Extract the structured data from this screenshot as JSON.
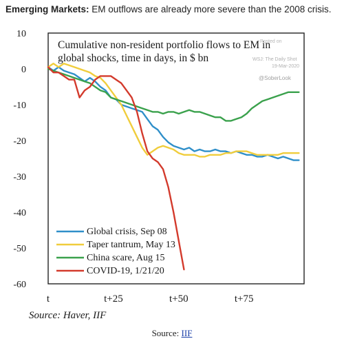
{
  "headline": {
    "bold": "Emerging Markets:",
    "rest": " EM outflows are already more severe than the 2008 crisis."
  },
  "footer": {
    "prefix": "Source: ",
    "link": "IIF"
  },
  "watermarks": {
    "wsj_posted": "Posted on",
    "wsj": "WSJ: The Daily Shot",
    "date": "19-Mar-2020",
    "handle": "@SoberLook"
  },
  "colors": {
    "global_crisis": "#2f8fc9",
    "taper": "#f0cd3c",
    "china": "#3aa14c",
    "covid": "#d33a2c",
    "text": "#1a1a1a"
  },
  "chart_data": {
    "type": "line",
    "title": "Cumulative non-resident portfolio flows to EM in global shocks, time in days, in $ bn",
    "title_lines": [
      "Cumulative non-resident portfolio flows to EM in",
      "global shocks, time in days, in $ bn"
    ],
    "source": "Source: Haver, IIF",
    "xlim": [
      0,
      98
    ],
    "ylim": [
      -60,
      10
    ],
    "y_ticks": [
      10,
      0,
      -10,
      -20,
      -30,
      -40,
      -50,
      -60
    ],
    "x_ticks": [
      {
        "value": 0,
        "label": "t"
      },
      {
        "value": 25,
        "label": "t+25"
      },
      {
        "value": 50,
        "label": "t+50"
      },
      {
        "value": 75,
        "label": "t+75"
      }
    ],
    "legend_position": "bottom-left",
    "series": [
      {
        "name": "Global crisis,  Sep 08",
        "color": "#2f8fc9",
        "x": [
          0,
          2,
          4,
          6,
          8,
          10,
          12,
          14,
          16,
          18,
          20,
          22,
          24,
          26,
          28,
          30,
          32,
          34,
          36,
          38,
          40,
          42,
          44,
          46,
          48,
          50,
          52,
          54,
          56,
          58,
          60,
          62,
          64,
          66,
          68,
          70,
          72,
          74,
          76,
          78,
          80,
          82,
          84,
          86,
          88,
          90,
          92,
          94,
          96
        ],
        "y": [
          0.5,
          -0.5,
          0.5,
          -0.5,
          -1,
          -1.5,
          -2.5,
          -3.5,
          -2.5,
          -3.5,
          -5,
          -6,
          -8,
          -8.5,
          -10,
          -10.5,
          -11,
          -11.5,
          -12,
          -14,
          -16,
          -17,
          -19,
          -20.5,
          -21.5,
          -22,
          -22.5,
          -22,
          -23,
          -22.5,
          -23,
          -23,
          -22.5,
          -23,
          -23,
          -23.5,
          -23,
          -23.5,
          -24,
          -24,
          -24.5,
          -24.5,
          -24,
          -24.5,
          -25,
          -24.5,
          -25,
          -25.5,
          -25.5
        ]
      },
      {
        "name": "Taper tantrum, May 13",
        "color": "#f0cd3c",
        "x": [
          0,
          2,
          4,
          6,
          8,
          10,
          12,
          14,
          16,
          18,
          20,
          22,
          24,
          26,
          28,
          30,
          32,
          34,
          36,
          38,
          40,
          42,
          44,
          46,
          48,
          50,
          52,
          54,
          56,
          58,
          60,
          62,
          64,
          66,
          68,
          70,
          72,
          74,
          76,
          78,
          80,
          82,
          84,
          86,
          88,
          90,
          92,
          94,
          96
        ],
        "y": [
          0.5,
          1.5,
          0.5,
          1.5,
          1,
          0.5,
          0,
          -0.5,
          -1,
          -2,
          -2.5,
          -4,
          -6,
          -8,
          -10,
          -13,
          -16,
          -19,
          -22,
          -24,
          -23,
          -22,
          -21.5,
          -22,
          -22.5,
          -23.5,
          -24,
          -24,
          -24,
          -24.5,
          -24.5,
          -24,
          -24,
          -24,
          -23.5,
          -23.5,
          -23,
          -23,
          -23,
          -23.5,
          -24,
          -24,
          -24,
          -24,
          -24,
          -23.5,
          -23.5,
          -23.5,
          -23.5
        ]
      },
      {
        "name": "China scare, Aug 15",
        "color": "#3aa14c",
        "x": [
          0,
          2,
          4,
          6,
          8,
          10,
          12,
          14,
          16,
          18,
          20,
          22,
          24,
          26,
          28,
          30,
          32,
          34,
          36,
          38,
          40,
          42,
          44,
          46,
          48,
          50,
          52,
          54,
          56,
          58,
          60,
          62,
          64,
          66,
          68,
          70,
          72,
          74,
          76,
          78,
          80,
          82,
          84,
          86,
          88,
          90,
          92,
          94,
          96
        ],
        "y": [
          0,
          -0.5,
          -1,
          -1.5,
          -2,
          -2.5,
          -3,
          -3.5,
          -4,
          -5,
          -6,
          -6.5,
          -8,
          -8.5,
          -9,
          -9.5,
          -10,
          -10.5,
          -11,
          -11.5,
          -12,
          -12,
          -12.5,
          -12,
          -12,
          -12.5,
          -12,
          -11.5,
          -12,
          -12,
          -12.5,
          -13,
          -13.5,
          -13.5,
          -14.5,
          -14.5,
          -14,
          -13.5,
          -12.5,
          -11,
          -10,
          -9,
          -8.5,
          -8,
          -7.5,
          -7,
          -6.5,
          -6.5,
          -6.5
        ]
      },
      {
        "name": "COVID-19, 1/21/20",
        "color": "#d33a2c",
        "x": [
          0,
          2,
          4,
          6,
          8,
          10,
          12,
          14,
          16,
          18,
          20,
          22,
          24,
          26,
          28,
          30,
          32,
          34,
          36,
          38,
          40,
          42,
          44,
          46,
          48,
          50,
          52
        ],
        "y": [
          0.5,
          -1,
          -1,
          -2,
          -3,
          -3,
          -8,
          -6,
          -5,
          -3,
          -2,
          -2,
          -2,
          -3,
          -4,
          -6,
          -8,
          -12,
          -18,
          -23,
          -25,
          -26,
          -28,
          -33,
          -40,
          -48,
          -56
        ]
      }
    ]
  }
}
